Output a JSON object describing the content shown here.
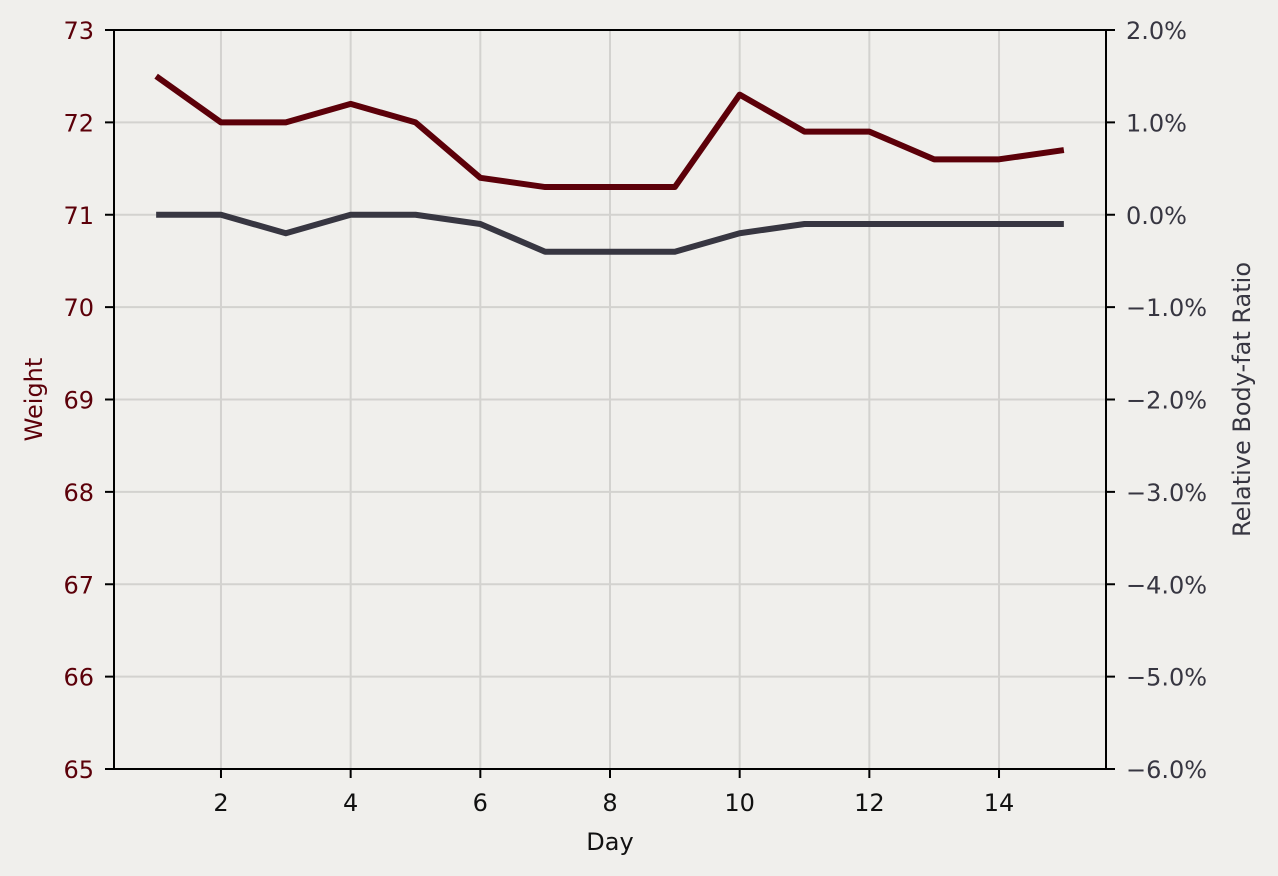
{
  "chart_data": {
    "type": "line",
    "title": "",
    "xlabel": "Day",
    "ylabel_left": "Weight",
    "ylabel_right": "Relative Body-fat Ratio",
    "x": [
      1,
      2,
      3,
      4,
      5,
      6,
      7,
      8,
      9,
      10,
      11,
      12,
      13,
      14,
      15
    ],
    "xlim": [
      0.35,
      15.65
    ],
    "xticks": [
      2,
      4,
      6,
      8,
      10,
      12,
      14
    ],
    "ylim_left": [
      65,
      73
    ],
    "yticks_left": [
      65,
      66,
      67,
      68,
      69,
      70,
      71,
      72,
      73
    ],
    "ylim_right": [
      -6.0,
      2.0
    ],
    "yticks_right": [
      -6.0,
      -5.0,
      -4.0,
      -3.0,
      -2.0,
      -1.0,
      0.0,
      1.0,
      2.0
    ],
    "right_axis_format": "percent, 1 decimal",
    "grid": true,
    "series": [
      {
        "axis": "left",
        "color": "#5c0009",
        "values": [
          72.5,
          72.0,
          72.0,
          72.2,
          72.0,
          71.4,
          71.3,
          71.3,
          71.3,
          72.3,
          71.9,
          71.9,
          71.6,
          71.6,
          71.7
        ]
      },
      {
        "axis": "right",
        "color": "#373641",
        "values": [
          0.0,
          0.0,
          -0.2,
          0.0,
          0.0,
          -0.1,
          -0.4,
          -0.4,
          -0.4,
          -0.2,
          -0.1,
          -0.1,
          -0.1,
          -0.1,
          -0.1
        ]
      }
    ],
    "colors": {
      "background": "#f0efec",
      "grid": "#d3d2cf",
      "left_axis_text": "#5c0009",
      "right_axis_text": "#373641",
      "x_axis_text": "#111111"
    }
  }
}
